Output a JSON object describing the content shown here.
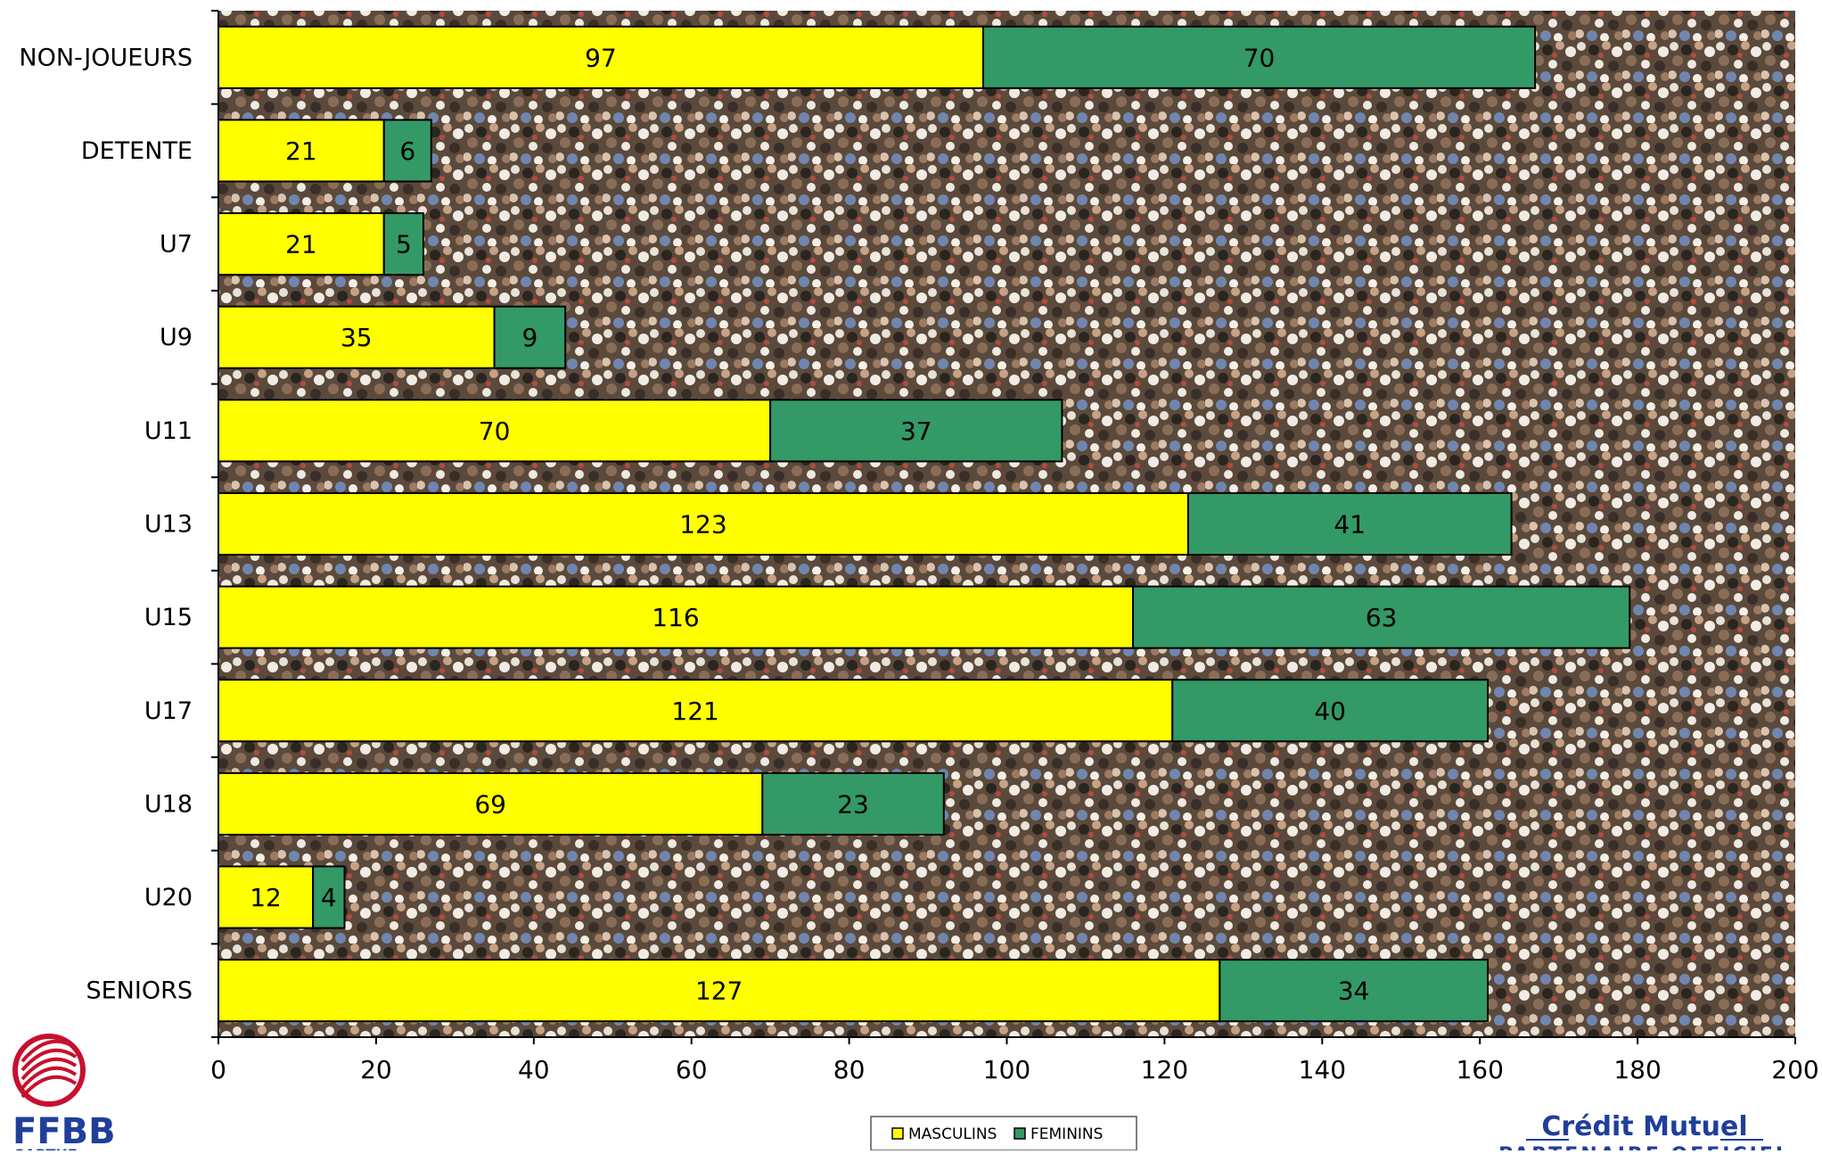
{
  "chart_data": {
    "type": "bar",
    "orientation": "horizontal",
    "stacked": true,
    "categories": [
      "NON-JOUEURS",
      "DETENTE",
      "U7",
      "U9",
      "U11",
      "U13",
      "U15",
      "U17",
      "U18",
      "U20",
      "SENIORS"
    ],
    "series": [
      {
        "name": "MASCULINS",
        "values": [
          97,
          21,
          21,
          35,
          70,
          123,
          116,
          121,
          69,
          12,
          127
        ],
        "color": "#ffff00"
      },
      {
        "name": "FEMININS",
        "values": [
          70,
          6,
          5,
          9,
          37,
          41,
          63,
          40,
          23,
          4,
          34
        ],
        "color": "#339966"
      }
    ],
    "xlim": [
      0,
      200
    ],
    "xticks": [
      0,
      20,
      40,
      60,
      80,
      100,
      120,
      140,
      160,
      180,
      200
    ],
    "legend_position": "bottom-center",
    "grid": false,
    "plot_background": "crowd photo"
  },
  "logos": {
    "ffbb_text": "FFBB",
    "ffbb_sub": "SARTHE",
    "sponsor_name": "Crédit Mutuel",
    "sponsor_tag": "PARTENAIRE OFFICIEL",
    "sponsor_color": "#1f3f9a",
    "ffbb_color": "#1f3f9a",
    "ffbb_accent": "#c8102e"
  }
}
